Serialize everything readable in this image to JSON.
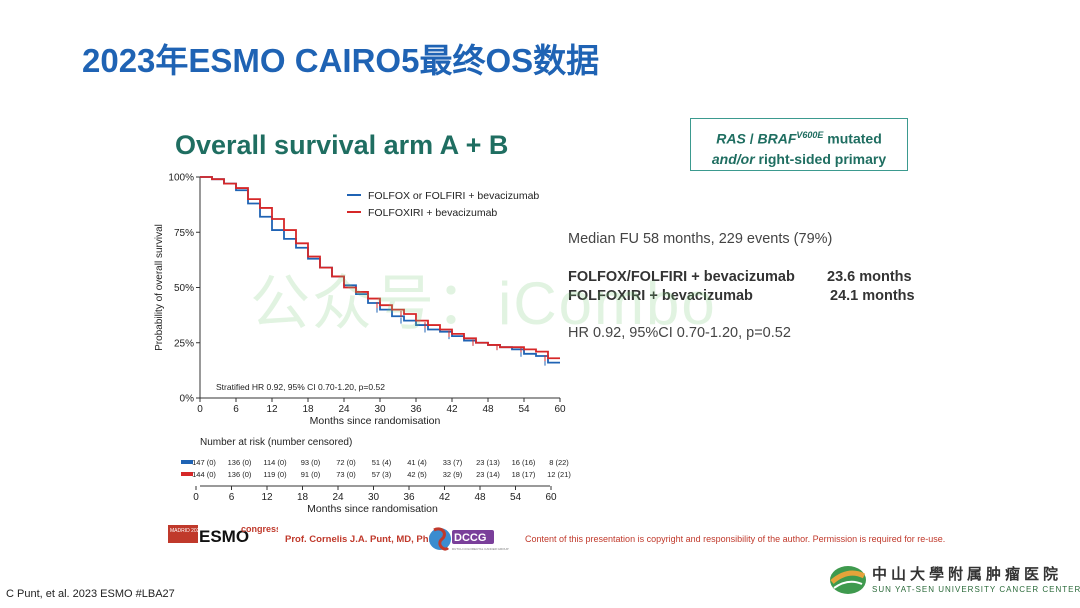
{
  "slide_title": "2023年ESMO CAIRO5最终OS数据",
  "watermark": "公众号：iCombo",
  "chart_title": "Overall survival arm A + B",
  "mutation_box": {
    "line1_a": "RAS",
    "line1_b": " / ",
    "line1_c": "BRAF",
    "line1_sup": "V600E",
    "line1_d": " mutated",
    "line2_a": "and/or",
    "line2_b": " right-sided primary"
  },
  "stats": {
    "median_fu": "Median FU 58 months, 229 events (79%)",
    "arm1_label": "FOLFOX/FOLFIRI + bevacizumab",
    "arm1_value": "23.6 months",
    "arm2_label": "FOLFOXIRI + bevacizumab",
    "arm2_value": "24.1 months",
    "hr": "HR 0.92, 95%CI 0.70-1.20, p=0.52"
  },
  "chart_data": {
    "type": "line",
    "xlabel": "Months since randomisation",
    "ylabel": "Probability of overall survival",
    "xlim": [
      0,
      60
    ],
    "ylim": [
      0,
      100
    ],
    "x_ticks": [
      "0",
      "6",
      "12",
      "18",
      "24",
      "30",
      "36",
      "42",
      "48",
      "54",
      "60"
    ],
    "y_ticks": [
      "0%",
      "25%",
      "50%",
      "75%",
      "100%"
    ],
    "annotation": "Stratified HR 0.92, 95% CI 0.70-1.20, p=0.52",
    "legend_position": "top-right",
    "series": [
      {
        "name": "FOLFOX or FOLFIRI + bevacizumab",
        "color": "#1f63b4",
        "x": [
          0,
          2,
          4,
          6,
          8,
          10,
          12,
          14,
          16,
          18,
          20,
          22,
          24,
          26,
          28,
          30,
          32,
          34,
          36,
          38,
          40,
          42,
          44,
          46,
          48,
          50,
          52,
          54,
          56,
          58,
          60
        ],
        "y": [
          100,
          99,
          97,
          94,
          88,
          82,
          76,
          72,
          68,
          63,
          59,
          55,
          51,
          47,
          43,
          40,
          37,
          35,
          33,
          31,
          30,
          28,
          26,
          25,
          24,
          23,
          22,
          20,
          19,
          16,
          16
        ]
      },
      {
        "name": "FOLFOXIRI + bevacizumab",
        "color": "#d62728",
        "x": [
          0,
          2,
          4,
          6,
          8,
          10,
          12,
          14,
          16,
          18,
          20,
          22,
          24,
          26,
          28,
          30,
          32,
          34,
          36,
          38,
          40,
          42,
          44,
          46,
          48,
          50,
          52,
          54,
          56,
          58,
          60
        ],
        "y": [
          100,
          99,
          97,
          95,
          90,
          86,
          81,
          76,
          70,
          64,
          59,
          55,
          50,
          48,
          45,
          42,
          40,
          38,
          35,
          33,
          31,
          29,
          27,
          25,
          24,
          23,
          23,
          22,
          21,
          18,
          18
        ]
      }
    ],
    "risk_table": {
      "title": "Number at risk (number censored)",
      "x_ticks": [
        "0",
        "6",
        "12",
        "18",
        "24",
        "30",
        "36",
        "42",
        "48",
        "54",
        "60"
      ],
      "xlabel": "Months since randomisation",
      "rows": [
        {
          "color": "#1f63b4",
          "values": [
            "147 (0)",
            "136 (0)",
            "114 (0)",
            "93 (0)",
            "72 (0)",
            "51 (4)",
            "41 (4)",
            "33 (7)",
            "23 (13)",
            "16 (16)",
            "8 (22)"
          ]
        },
        {
          "color": "#d62728",
          "values": [
            "144 (0)",
            "136 (0)",
            "119 (0)",
            "91 (0)",
            "73 (0)",
            "57 (3)",
            "42 (5)",
            "32 (9)",
            "23 (14)",
            "18 (17)",
            "12 (21)"
          ]
        }
      ]
    }
  },
  "footer": {
    "citation": "C Punt, et al. 2023 ESMO #LBA27",
    "esmo_year": "MADRID 2023",
    "esmo_word": "ESMO",
    "esmo_congress": "congress",
    "presenter": "Prof. Cornelis J.A. Punt, MD, PhD",
    "dccg": "DCCG",
    "dccg_sub": "DUTCH COLORECTAL CANCER GROUP",
    "copyright": "Content of this presentation is copyright and responsibility of the author. Permission is required for re-use.",
    "hospital_cn": "中山大學附属肿瘤医院",
    "hospital_en": "SUN YAT-SEN UNIVERSITY CANCER CENTER"
  }
}
